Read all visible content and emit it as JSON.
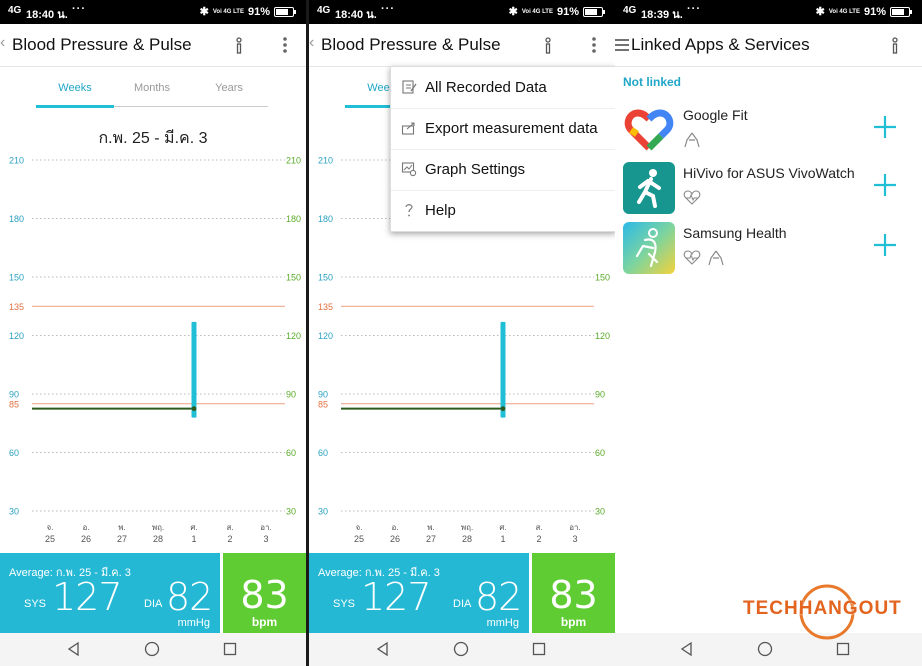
{
  "status": {
    "left": {
      "signal": "4G",
      "time": "18:40 น.",
      "dots": "···",
      "lte": "Voi 4G LTE",
      "battery": "91%"
    },
    "middle": {
      "signal": "4G",
      "time": "18:40 น.",
      "dots": "···",
      "lte": "Voi 4G LTE",
      "battery": "91%"
    },
    "right": {
      "signal": "4G",
      "time": "18:39 น.",
      "dots": "···",
      "lte": "Voi 4G LTE",
      "battery": "91%"
    }
  },
  "bp_screen": {
    "title": "Blood Pressure & Pulse",
    "tabs": [
      {
        "label": "Weeks"
      },
      {
        "label": "Months"
      },
      {
        "label": "Years"
      }
    ],
    "active_tab": "Weeks",
    "range": "ก.พ. 25 - มี.ค. 3",
    "summary": {
      "average": "Average: ก.พ. 25 - มี.ค. 3",
      "sys_label": "SYS",
      "sys_value": "127",
      "dia_label": "DIA",
      "dia_value": "82",
      "unit": "mmHg",
      "pulse_value": "83",
      "pulse_unit": "bpm"
    }
  },
  "menu": {
    "items": [
      {
        "label": "All Recorded Data",
        "icon": "edit-icon"
      },
      {
        "label": "Export measurement data",
        "icon": "export-icon"
      },
      {
        "label": "Graph Settings",
        "icon": "settings-icon"
      },
      {
        "label": "Help",
        "icon": "help-icon"
      }
    ]
  },
  "linked": {
    "title": "Linked Apps & Services",
    "section": "Not linked",
    "apps": [
      {
        "name": "Google Fit",
        "sub_icons": [
          "steps-icon"
        ]
      },
      {
        "name": "HiVivo for ASUS VivoWatch",
        "sub_icons": [
          "heart-icon"
        ]
      },
      {
        "name": "Samsung Health",
        "sub_icons": [
          "heart-icon",
          "steps-icon"
        ]
      }
    ]
  },
  "watermark": "TECHHANGOUT",
  "colors": {
    "accent": "#21bfd6",
    "pulse": "#5fcc33",
    "sys_line": "#f0a080",
    "dia_line": "#e07040",
    "tick_blue": "#2aa1c0",
    "tick_green": "#5aaa2a"
  },
  "chart_data": {
    "type": "bar",
    "categories": [
      "จ.\n25",
      "อ.\n26",
      "พ.\n27",
      "พฤ.\n28",
      "ศ.\n1",
      "ส.\n2",
      "อา.\n3"
    ],
    "x_labels": [
      {
        "day": "จ.",
        "date": "25"
      },
      {
        "day": "อ.",
        "date": "26"
      },
      {
        "day": "พ.",
        "date": "27"
      },
      {
        "day": "พฤ.",
        "date": "28"
      },
      {
        "day": "ศ.",
        "date": "1"
      },
      {
        "day": "ส.",
        "date": "2"
      },
      {
        "day": "อา.",
        "date": "3"
      }
    ],
    "series": [
      {
        "values": [
          null,
          null,
          null,
          null,
          [
            82,
            127
          ],
          null,
          null
        ]
      }
    ],
    "pulse": [
      null,
      null,
      null,
      null,
      83,
      null,
      null
    ],
    "ylim": [
      30,
      210
    ],
    "left_ticks": [
      210,
      180,
      150,
      135,
      120,
      90,
      85,
      60,
      30
    ],
    "right_ticks": [
      210,
      180,
      150,
      120,
      90,
      60,
      30
    ],
    "reference_lines": [
      135,
      85
    ],
    "grid": true
  }
}
